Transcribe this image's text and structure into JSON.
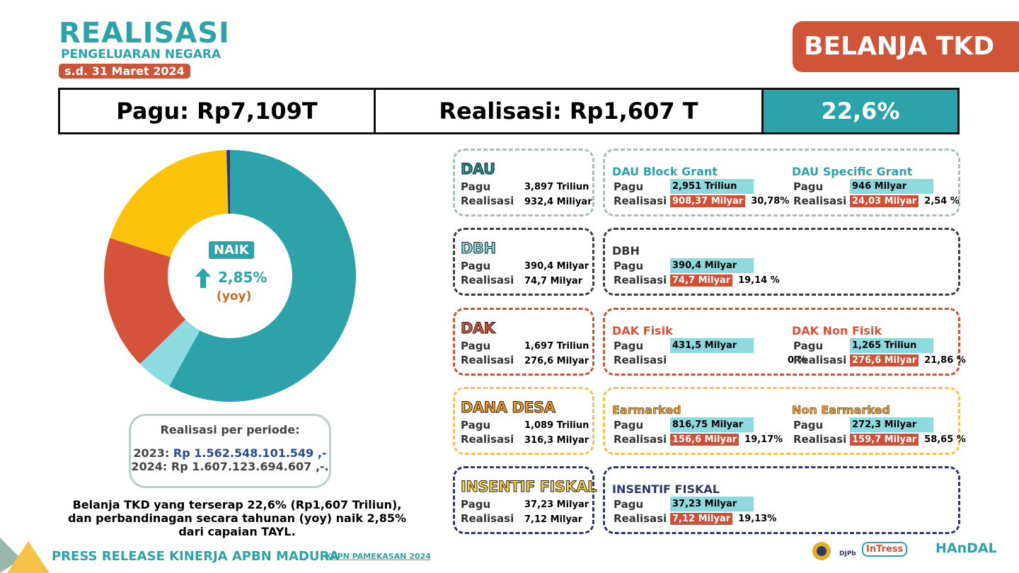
{
  "header": {
    "title": "REALISASI",
    "subtitle": "PENGELUARAN NEGARA",
    "date": "s.d. 31 Maret 2024",
    "badge": "BELANJA TKD"
  },
  "summary": {
    "pagu": "Pagu: Rp7,109T",
    "realisasi": "Realisasi: Rp1,607 T",
    "percent": "22,6%"
  },
  "chart_data": {
    "type": "pie",
    "values": [
      932.4,
      74.7,
      276.6,
      316.3,
      7.12
    ],
    "colors": [
      "#2ca3a8",
      "#8bdbe0",
      "#d4533a",
      "#fdc20a",
      "#2b3a6b"
    ]
  },
  "center": {
    "label": "NAIK",
    "value": "2,85%",
    "note": "(yoy)"
  },
  "period": {
    "title": "Realisasi per periode:",
    "y2023_label": "2023:",
    "y2023": "Rp 1.562.548.101.549 ,-",
    "y2024": "2024: Rp 1.607.123.694.607 ,-."
  },
  "description": [
    "Belanja TKD yang terserap 22,6% (Rp1,607 Triliun),",
    "dan perbandinagan secara tahunan (yoy) naik 2,85%",
    "dari capaian TAYL."
  ],
  "footer": {
    "title": "PRESS RELEASE KINERJA APBN MADURA",
    "sub": "KPPN PAMEKASAN 2024",
    "logos": [
      "DJPb",
      "InTress",
      "HAnDAL"
    ]
  },
  "sections": [
    {
      "title": "DAU",
      "color": "#a9bfb3",
      "title_fill": "#1f8f94",
      "pagu_label": "Pagu",
      "pagu": "3,897 Triliun",
      "realisasi_label": "Realisasi",
      "realisasi": "932,4 Miliyar",
      "details": [
        {
          "title": "DAU Block Grant",
          "title_color": "#2ca3a8",
          "pagu_label": "Pagu",
          "pagu": "2,951 Triliun",
          "realisasi_label": "Realisasi",
          "realisasi": "908,37  Milyar",
          "percent": "30,78%"
        },
        {
          "title": "DAU Specific Grant",
          "title_color": "#2ca3a8",
          "pagu_label": "Pagu",
          "pagu": "946 Milyar",
          "realisasi_label": "Realisasi",
          "realisasi": "24,03 Milyar",
          "percent": "2,54 %"
        }
      ]
    },
    {
      "title": "DBH",
      "color": "#3d3d3d",
      "title_fill": "#7fd3da",
      "pagu_label": "Pagu",
      "pagu": "390,4 Milyar",
      "realisasi_label": "Realisasi",
      "realisasi": "74,7 Milyar",
      "details": [
        {
          "title": "DBH",
          "title_color": "#333333",
          "pagu_label": "Pagu",
          "pagu": "390,4 Milyar",
          "realisasi_label": "Realisasi",
          "realisasi": "74,7  Milyar",
          "percent": "19,14 %"
        }
      ]
    },
    {
      "title": "DAK",
      "color": "#c9553a",
      "title_fill": "#d4533a",
      "pagu_label": "Pagu",
      "pagu": "1,697 Triliun",
      "realisasi_label": "Realisasi",
      "realisasi": "276,6 Milyar",
      "details": [
        {
          "title": "DAK Fisik",
          "title_color": "#d4533a",
          "pagu_label": "Pagu",
          "pagu": "431,5 Milyar",
          "realisasi_label": "Realisasi",
          "percent": "0 %"
        },
        {
          "title": "DAK Non Fisik",
          "title_color": "#d4533a",
          "pagu_label": "Pagu",
          "pagu": "1,265 Triliun",
          "realisasi_label": "Realisasi",
          "realisasi": "276,6 Milyar",
          "percent": "21,86 %"
        }
      ]
    },
    {
      "title": "DANA DESA",
      "color": "#f2c44e",
      "title_fill": "#f0a020",
      "pagu_label": "Pagu",
      "pagu": "1,089 Triliun",
      "realisasi_label": "Realisasi",
      "realisasi": "316,3 Milyar",
      "details": [
        {
          "title": "Earmarked",
          "title_color": "#f0a020",
          "pagu_label": "Pagu",
          "pagu": "816,75 Milyar",
          "realisasi_label": "Realisasi",
          "realisasi": "156,6 Milyar",
          "percent": "19,17%"
        },
        {
          "title": "Non Earmarked",
          "title_color": "#f0a020",
          "pagu_label": "Pagu",
          "pagu": "272,3 Milyar",
          "realisasi_label": "Realisasi",
          "realisasi": "159,7 Milyar",
          "percent": "58,65 %"
        }
      ]
    },
    {
      "title": "INSENTIF FISKAL",
      "color": "#2d3666",
      "title_fill": "#f7d24a",
      "pagu_label": "Pagu",
      "pagu": "37,23 Milyar",
      "realisasi_label": "Realisasi",
      "realisasi": "7,12 Milyar",
      "details": [
        {
          "title": "INSENTIF FISKAL",
          "title_color": "#2d3666",
          "pagu_label": "Pagu",
          "pagu": "37,23 Milyar",
          "realisasi_label": "Realisasi",
          "realisasi": "7,12 Milyar",
          "percent": "19,13%"
        }
      ]
    }
  ]
}
